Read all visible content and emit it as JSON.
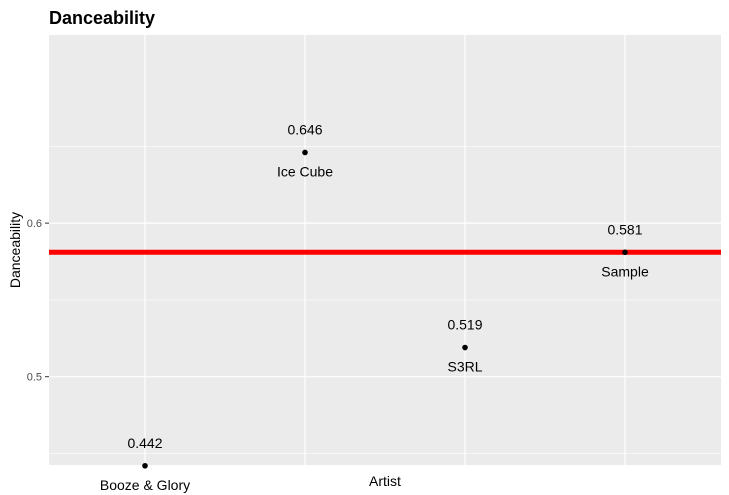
{
  "chart_data": {
    "type": "scatter",
    "title": "Danceability",
    "xlabel": "Artist",
    "ylabel": "Danceability",
    "categories": [
      "Booze & Glory",
      "Ice Cube",
      "S3RL",
      "Sample"
    ],
    "points": [
      {
        "artist": "Booze & Glory",
        "value": 0.442,
        "value_label": "0.442"
      },
      {
        "artist": "Ice Cube",
        "value": 0.646,
        "value_label": "0.646"
      },
      {
        "artist": "S3RL",
        "value": 0.519,
        "value_label": "0.519"
      },
      {
        "artist": "Sample",
        "value": 0.581,
        "value_label": "0.581"
      }
    ],
    "reference_line": {
      "value": 0.581,
      "color": "#ff0000"
    },
    "ylim": [
      0.4425,
      0.7225
    ],
    "yticks": [
      {
        "value": 0.5,
        "label": "0.5"
      },
      {
        "value": 0.6,
        "label": "0.6"
      }
    ],
    "grid": true,
    "panel_background": "#ebebeb",
    "gridline_color": "#ffffff",
    "point_color": "#000000"
  }
}
